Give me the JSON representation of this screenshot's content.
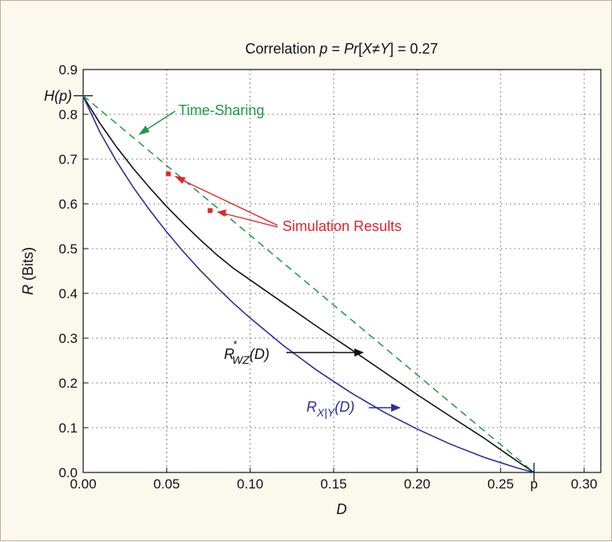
{
  "chart_data": {
    "type": "line",
    "title_parts": [
      "Correlation ",
      "p",
      " = ",
      "Pr",
      "[",
      "X",
      "≠",
      "Y",
      "] = 0.27"
    ],
    "xlabel": "D",
    "ylabel_parts": [
      "R",
      " (Bits)"
    ],
    "xlim": [
      0,
      0.31
    ],
    "ylim": [
      0,
      0.9
    ],
    "x_ticks": [
      "0.00",
      "0.05",
      "0.10",
      "0.15",
      "0.20",
      "0.25",
      "0.30"
    ],
    "x_tick_values": [
      0,
      0.05,
      0.1,
      0.15,
      0.2,
      0.25,
      0.3
    ],
    "p_tick": {
      "label": "p",
      "value": 0.27
    },
    "y_ticks": [
      "0.0",
      "0.1",
      "0.2",
      "0.3",
      "0.4",
      "0.5",
      "0.6",
      "0.7",
      "0.8",
      "0.9"
    ],
    "y_tick_values": [
      0,
      0.1,
      0.2,
      0.3,
      0.4,
      0.5,
      0.6,
      0.7,
      0.8,
      0.9
    ],
    "hp_label": "H(p)",
    "hp_value": 0.8415,
    "grid": true,
    "series": [
      {
        "name": "R*WZ(D)",
        "color": "#111111",
        "style": "solid",
        "x": [
          0,
          0.01,
          0.02,
          0.03,
          0.04,
          0.05,
          0.06,
          0.07,
          0.08,
          0.09,
          0.1,
          0.12,
          0.14,
          0.16,
          0.18,
          0.2,
          0.22,
          0.24,
          0.26,
          0.27
        ],
        "y": [
          0.84,
          0.78,
          0.727,
          0.679,
          0.635,
          0.594,
          0.556,
          0.52,
          0.486,
          0.456,
          0.43,
          0.378,
          0.326,
          0.276,
          0.225,
          0.174,
          0.125,
          0.077,
          0.025,
          0.0
        ]
      },
      {
        "name": "RX|Y(D)",
        "color": "#2b2f9a",
        "style": "solid",
        "x": [
          0,
          0.01,
          0.02,
          0.03,
          0.04,
          0.05,
          0.06,
          0.07,
          0.08,
          0.09,
          0.1,
          0.12,
          0.14,
          0.16,
          0.18,
          0.2,
          0.22,
          0.24,
          0.26,
          0.27
        ],
        "y": [
          0.84,
          0.76,
          0.695,
          0.637,
          0.585,
          0.537,
          0.493,
          0.452,
          0.414,
          0.378,
          0.345,
          0.283,
          0.228,
          0.179,
          0.135,
          0.097,
          0.063,
          0.034,
          0.01,
          0.0
        ]
      },
      {
        "name": "Time-Sharing",
        "color": "#1c9a46",
        "style": "dashed",
        "x": [
          0,
          0.27
        ],
        "y": [
          0.8415,
          0.0
        ]
      }
    ],
    "simulation_points": {
      "color": "#e3232a",
      "x": [
        0.051,
        0.076
      ],
      "y": [
        0.667,
        0.585
      ]
    },
    "annotations": {
      "time_sharing": "Time-Sharing",
      "simulation": "Simulation Results",
      "rwz": {
        "base": "R",
        "sup": "*",
        "sub": "WZ",
        "arg": "(D)"
      },
      "rxy": {
        "base": "R",
        "sub": "X|Y",
        "arg": "(D)"
      }
    }
  }
}
